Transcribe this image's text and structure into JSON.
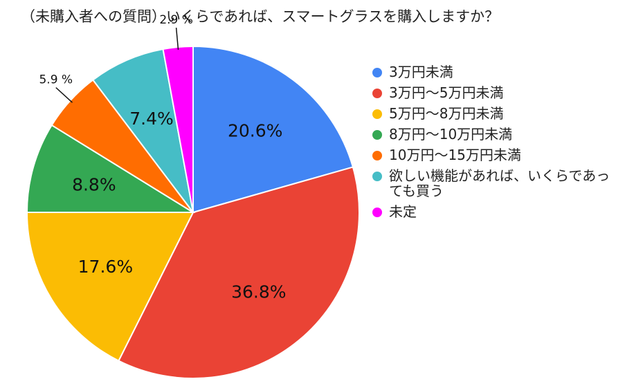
{
  "chart_data": {
    "type": "pie",
    "title": "（未購入者への質問）いくらであれば、スマートグラスを購入しますか？",
    "slices": [
      {
        "name": "3万円未満",
        "value": 20.6,
        "label": "20.6%",
        "color": "#4285f4",
        "label_placement": "inside"
      },
      {
        "name": "3万円〜5万円未満",
        "value": 36.8,
        "label": "36.8%",
        "color": "#ea4335",
        "label_placement": "inside"
      },
      {
        "name": "5万円〜8万円未満",
        "value": 17.6,
        "label": "17.6%",
        "color": "#fbbc04",
        "label_placement": "inside"
      },
      {
        "name": "8万円〜10万円未満",
        "value": 8.8,
        "label": "8.8%",
        "color": "#34a853",
        "label_placement": "inside"
      },
      {
        "name": "10万円〜15万円未満",
        "value": 5.9,
        "label": "5.9 %",
        "color": "#ff6d01",
        "label_placement": "outside"
      },
      {
        "name": "欲しい機能があれば、いくらであっても買う",
        "value": 7.4,
        "label": "7.4%",
        "color": "#46bdc6",
        "label_placement": "inside"
      },
      {
        "name": "未定",
        "value": 2.9,
        "label": "2.9 %",
        "color": "#ff00ff",
        "label_placement": "outside"
      }
    ],
    "legend_position": "right",
    "start": "top, clockwise"
  }
}
